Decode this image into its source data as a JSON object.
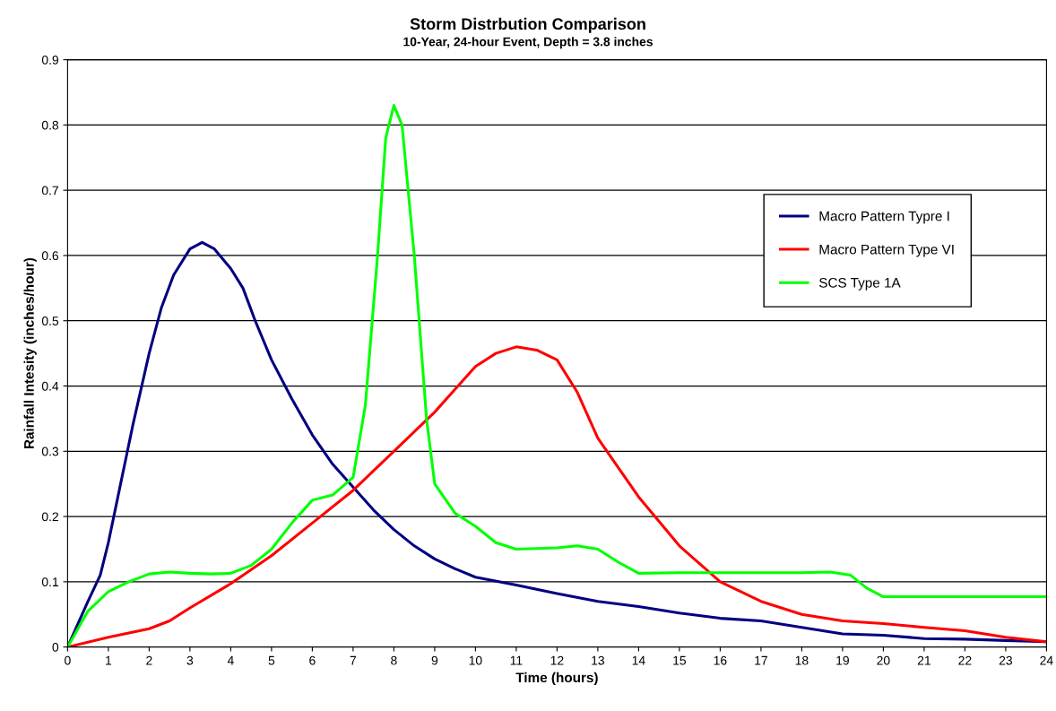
{
  "chart_data": {
    "type": "line",
    "title": "Storm Distrbution Comparison",
    "subtitle": "10-Year, 24-hour Event, Depth = 3.8 inches",
    "xlabel": "Time (hours)",
    "ylabel": "Rainfall Intesity (inches/hour)",
    "xlim": [
      0,
      24
    ],
    "xticks": [
      0,
      1,
      2,
      3,
      4,
      5,
      6,
      7,
      8,
      9,
      10,
      11,
      12,
      13,
      14,
      15,
      16,
      17,
      18,
      19,
      20,
      21,
      22,
      23,
      24
    ],
    "ylim": [
      0,
      0.9
    ],
    "yticks": [
      0,
      0.1,
      0.2,
      0.3,
      0.4,
      0.5,
      0.6,
      0.7,
      0.8,
      0.9
    ],
    "grid": "y",
    "legend": "right",
    "marker": "none",
    "line_style": "solid",
    "series": [
      {
        "name": "Macro Pattern Typre I",
        "color": "#000080",
        "x": [
          0,
          0.5,
          0.8,
          1,
          1.3,
          1.6,
          2,
          2.3,
          2.6,
          3,
          3.3,
          3.6,
          4,
          4.3,
          4.6,
          5,
          5.5,
          6,
          6.5,
          7,
          7.5,
          8,
          8.5,
          9,
          9.5,
          10,
          11,
          12,
          13,
          14,
          15,
          16,
          17,
          18,
          19,
          20,
          21,
          22,
          23,
          24
        ],
        "values": [
          0,
          0.07,
          0.11,
          0.16,
          0.25,
          0.34,
          0.45,
          0.52,
          0.57,
          0.61,
          0.62,
          0.61,
          0.58,
          0.55,
          0.5,
          0.44,
          0.38,
          0.325,
          0.28,
          0.245,
          0.21,
          0.18,
          0.155,
          0.135,
          0.12,
          0.107,
          0.095,
          0.082,
          0.07,
          0.062,
          0.052,
          0.044,
          0.04,
          0.03,
          0.02,
          0.018,
          0.013,
          0.012,
          0.01,
          0.008
        ]
      },
      {
        "name": "Macro Pattern Type VI",
        "color": "#ff0000",
        "x": [
          0,
          1,
          2,
          2.5,
          3,
          4,
          5,
          6,
          7,
          8,
          9,
          10,
          10.5,
          11,
          11.5,
          12,
          12.5,
          13,
          14,
          15,
          16,
          17,
          18,
          19,
          20,
          21,
          22,
          23,
          24
        ],
        "values": [
          0,
          0.015,
          0.028,
          0.04,
          0.06,
          0.097,
          0.14,
          0.19,
          0.24,
          0.3,
          0.36,
          0.43,
          0.45,
          0.46,
          0.455,
          0.44,
          0.39,
          0.32,
          0.23,
          0.155,
          0.1,
          0.07,
          0.05,
          0.04,
          0.036,
          0.03,
          0.025,
          0.015,
          0.008
        ]
      },
      {
        "name": "SCS Type 1A",
        "color": "#00ff00",
        "x": [
          0,
          0.5,
          1,
          1.5,
          2,
          2.5,
          3,
          3.5,
          4,
          4.5,
          5,
          5.5,
          6,
          6.5,
          7,
          7.3,
          7.6,
          7.8,
          8,
          8.2,
          8.5,
          8.8,
          9,
          9.5,
          10,
          10.5,
          11,
          12,
          12.5,
          13,
          13.5,
          14,
          15,
          16,
          17,
          18,
          18.7,
          19.2,
          19.6,
          20,
          21,
          24
        ],
        "values": [
          0,
          0.055,
          0.085,
          0.1,
          0.112,
          0.115,
          0.113,
          0.112,
          0.113,
          0.125,
          0.15,
          0.19,
          0.225,
          0.233,
          0.26,
          0.37,
          0.6,
          0.78,
          0.83,
          0.8,
          0.6,
          0.35,
          0.25,
          0.205,
          0.185,
          0.16,
          0.15,
          0.152,
          0.155,
          0.15,
          0.13,
          0.113,
          0.114,
          0.114,
          0.114,
          0.114,
          0.115,
          0.11,
          0.09,
          0.077,
          0.077,
          0.077
        ]
      }
    ]
  }
}
